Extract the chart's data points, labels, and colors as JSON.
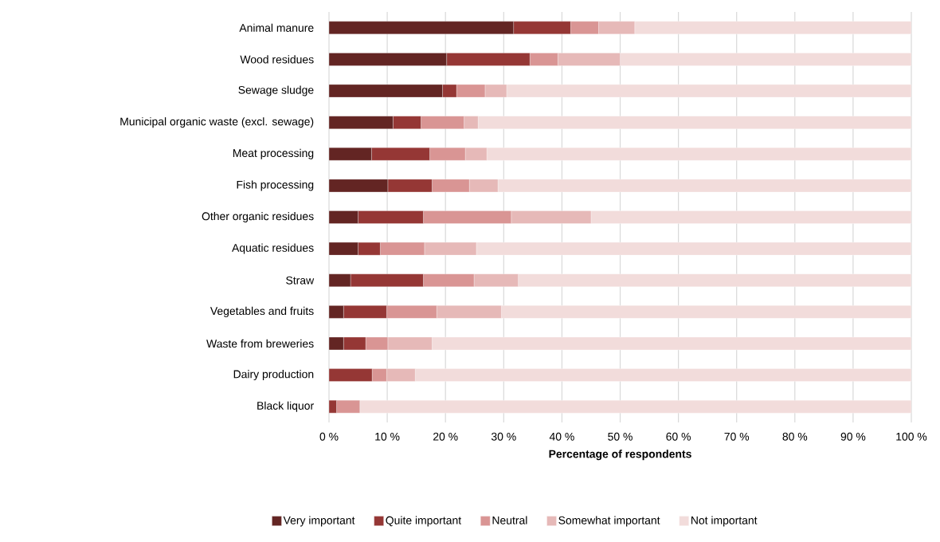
{
  "chart_data": {
    "type": "bar",
    "orientation": "horizontal",
    "stacked": true,
    "xlabel": "Percentage of respondents",
    "categories": [
      "Animal manure",
      "Wood residues",
      "Sewage sludge",
      "Municipal organic waste (excl. sewage)",
      "Meat processing",
      "Fish processing",
      "Other organic residues",
      "Aquatic residues",
      "Straw",
      "Vegetables and fruits",
      "Waste from breweries",
      "Dairy production",
      "Black liquor"
    ],
    "series": [
      {
        "name": "Very important",
        "color": "#632523",
        "values": [
          31.7,
          20.2,
          19.5,
          11.0,
          7.3,
          10.1,
          5.0,
          5.0,
          3.7,
          2.5,
          2.5,
          0,
          0
        ]
      },
      {
        "name": "Quite important",
        "color": "#953735",
        "values": [
          9.8,
          14.3,
          2.4,
          4.8,
          10.0,
          7.6,
          11.2,
          3.8,
          12.5,
          7.4,
          3.8,
          7.4,
          1.3
        ]
      },
      {
        "name": "Neutral",
        "color": "#d99594",
        "values": [
          4.8,
          4.8,
          4.9,
          7.4,
          6.1,
          6.4,
          15.1,
          7.6,
          8.7,
          8.6,
          3.8,
          2.5,
          4.0
        ]
      },
      {
        "name": "Somewhat important",
        "color": "#e6b9b8",
        "values": [
          6.2,
          10.7,
          3.7,
          2.4,
          3.7,
          4.9,
          13.7,
          8.9,
          7.6,
          11.1,
          7.6,
          4.9,
          0
        ]
      },
      {
        "name": "Not important",
        "color": "#f2dcdb",
        "values": [
          47.5,
          50.0,
          69.5,
          74.4,
          72.9,
          71.0,
          55.0,
          74.7,
          67.5,
          70.4,
          82.3,
          85.2,
          94.7
        ]
      }
    ],
    "xlim": [
      0,
      100
    ],
    "xticks": [
      {
        "value": 0,
        "label": "0 %"
      },
      {
        "value": 10,
        "label": "10 %"
      },
      {
        "value": 20,
        "label": "20 %"
      },
      {
        "value": 30,
        "label": "30 %"
      },
      {
        "value": 40,
        "label": "40 %"
      },
      {
        "value": 50,
        "label": "50 %"
      },
      {
        "value": 60,
        "label": "60 %"
      },
      {
        "value": 70,
        "label": "70 %"
      },
      {
        "value": 80,
        "label": "80 %"
      },
      {
        "value": 90,
        "label": "90 %"
      },
      {
        "value": 100,
        "label": "100 %"
      }
    ],
    "grid": "x",
    "legend": "bottom"
  }
}
